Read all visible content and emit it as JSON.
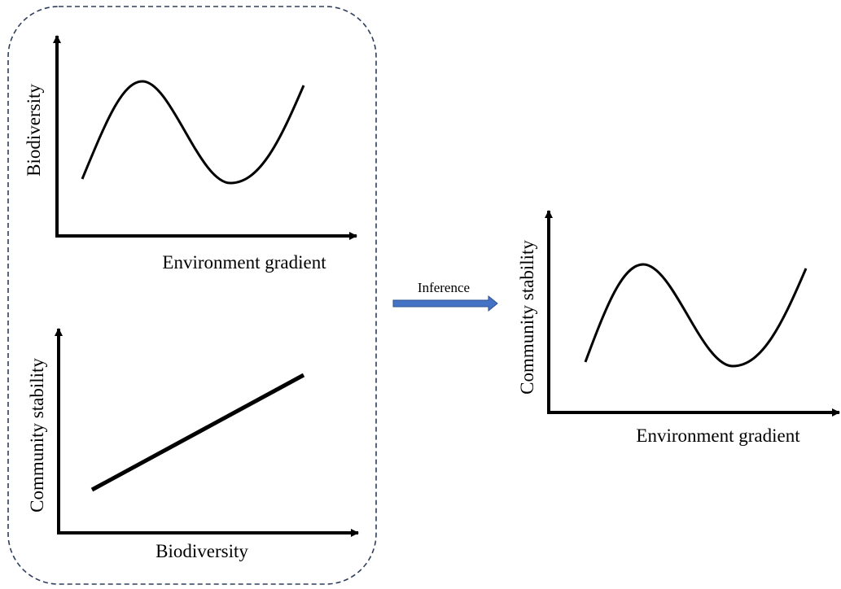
{
  "panels": [
    {
      "x_label": "Environment gradient",
      "y_label": "Biodiversity"
    },
    {
      "x_label": "Biodiversity",
      "y_label": "Community stability"
    },
    {
      "x_label": "Environment gradient",
      "y_label": "Community stability"
    }
  ],
  "arrow": {
    "label": "Inference"
  }
}
